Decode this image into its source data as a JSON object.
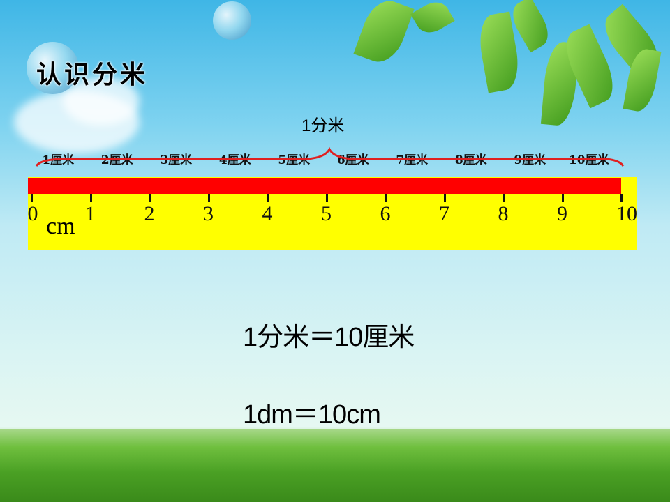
{
  "title": "认识分米",
  "decimeter_label": "1分米",
  "centimeter_labels": [
    "1厘米",
    "2厘米",
    "3厘米",
    "4厘米",
    "5厘米",
    "6厘米",
    "7厘米",
    "8厘米",
    "9厘米",
    "10厘米"
  ],
  "ruler": {
    "numbers": [
      "0",
      "1",
      "2",
      "3",
      "4",
      "5",
      "6",
      "7",
      "8",
      "9",
      "10"
    ],
    "unit": "cm",
    "colors": {
      "body": "#ffff00",
      "bar": "#ff0000",
      "brace": "#e02020"
    }
  },
  "equation_chinese": "1分米＝10厘米",
  "equation_units": "1dm＝10cm"
}
